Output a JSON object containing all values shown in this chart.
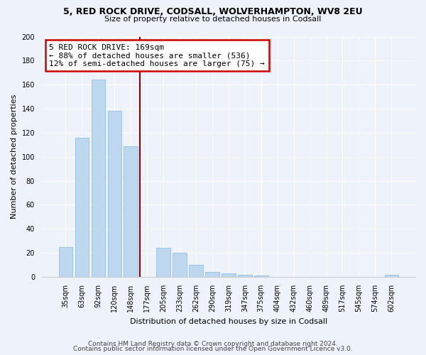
{
  "title1": "5, RED ROCK DRIVE, CODSALL, WOLVERHAMPTON, WV8 2EU",
  "title2": "Size of property relative to detached houses in Codsall",
  "xlabel": "Distribution of detached houses by size in Codsall",
  "ylabel": "Number of detached properties",
  "bar_labels": [
    "35sqm",
    "63sqm",
    "92sqm",
    "120sqm",
    "148sqm",
    "177sqm",
    "205sqm",
    "233sqm",
    "262sqm",
    "290sqm",
    "319sqm",
    "347sqm",
    "375sqm",
    "404sqm",
    "432sqm",
    "460sqm",
    "489sqm",
    "517sqm",
    "545sqm",
    "574sqm",
    "602sqm"
  ],
  "bar_values": [
    25,
    116,
    164,
    138,
    109,
    0,
    24,
    20,
    10,
    4,
    3,
    2,
    1,
    0,
    0,
    0,
    0,
    0,
    0,
    0,
    2
  ],
  "bar_color": "#BDD7EE",
  "bar_edge_color": "#9DC3E6",
  "vline_color": "#8B0000",
  "annotation_title": "5 RED ROCK DRIVE: 169sqm",
  "annotation_line1": "← 88% of detached houses are smaller (536)",
  "annotation_line2": "12% of semi-detached houses are larger (75) →",
  "annotation_box_color": "#ffffff",
  "annotation_box_edge": "#CC0000",
  "ylim": [
    0,
    200
  ],
  "yticks": [
    0,
    20,
    40,
    60,
    80,
    100,
    120,
    140,
    160,
    180,
    200
  ],
  "footer1": "Contains HM Land Registry data © Crown copyright and database right 2024.",
  "footer2": "Contains public sector information licensed under the Open Government Licence v3.0.",
  "bg_color": "#EEF2FA",
  "grid_color": "#FFFFFF",
  "title_fontsize": 9,
  "subtitle_fontsize": 8,
  "axis_label_fontsize": 8,
  "tick_fontsize": 7,
  "annotation_fontsize": 8,
  "footer_fontsize": 6.5
}
